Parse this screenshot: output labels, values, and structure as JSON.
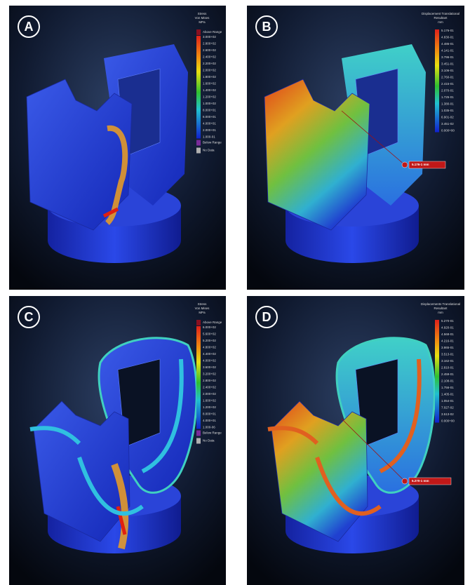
{
  "panels": [
    {
      "label": "A",
      "legend": {
        "title": [
          "Stress",
          "Von Mises",
          "MPa"
        ],
        "above": "Above Range",
        "below": "Below Range",
        "nodata": "No Data",
        "ticks": [
          "3.000+02",
          "2.800+02",
          "2.600+02",
          "2.400+02",
          "2.200+02",
          "2.000+02",
          "1.800+02",
          "1.600+02",
          "1.400+02",
          "1.200+02",
          "1.000+02",
          "8.000+01",
          "6.000+01",
          "4.000+01",
          "2.000+01",
          "1.000-01"
        ]
      }
    },
    {
      "label": "B",
      "legend": {
        "title": [
          "Displacement Translational",
          "Resultant",
          "mm"
        ],
        "ticks": [
          "5.176-01",
          "4.830-01",
          "4.486-01",
          "4.141-01",
          "3.796-01",
          "3.451-01",
          "3.106-01",
          "2.760-01",
          "2.415-01",
          "2.070-01",
          "1.725-01",
          "1.380-01",
          "1.035-01",
          "6.901-02",
          "3.451-02",
          "0.000+00"
        ]
      },
      "probe": "5.176-1 mm"
    },
    {
      "label": "C",
      "legend": {
        "title": [
          "Stress",
          "Von Mises",
          "MPa"
        ],
        "above": "Above Range",
        "below": "Below Range",
        "nodata": "No Data",
        "ticks": [
          "6.000+02",
          "5.600+02",
          "5.200+02",
          "4.800+02",
          "4.400+02",
          "4.000+02",
          "3.600+02",
          "3.200+02",
          "2.800+02",
          "2.400+02",
          "2.000+02",
          "1.600+02",
          "1.200+02",
          "8.000+01",
          "4.000+01",
          "1.000-06"
        ]
      }
    },
    {
      "label": "D",
      "legend": {
        "title": [
          "Displacements Translational",
          "Resultant",
          "mm"
        ],
        "ticks": [
          "5.270-01",
          "4.920-01",
          "4.568-01",
          "4.216-01",
          "3.865-01",
          "3.513-01",
          "3.162-01",
          "2.810-01",
          "2.459-01",
          "2.108-01",
          "1.756-01",
          "1.405-01",
          "1.054-01",
          "7.027-02",
          "3.513-02",
          "0.000+00"
        ]
      },
      "probe": "5.270-1 mm"
    }
  ]
}
